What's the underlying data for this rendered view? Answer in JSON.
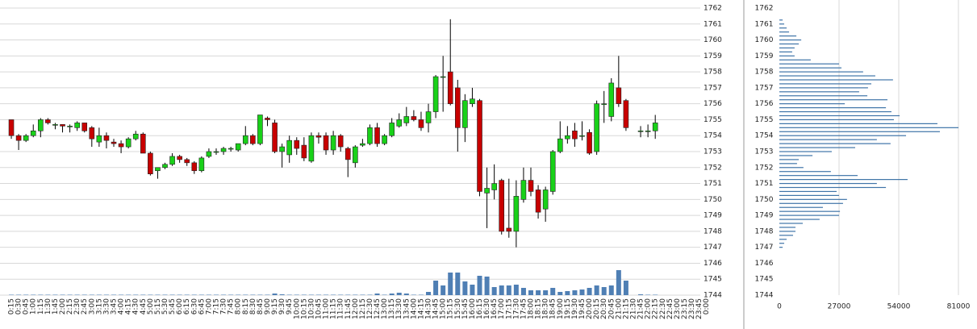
{
  "chart_data": [
    {
      "type": "candlestick",
      "x": [
        "0:15",
        "0:30",
        "0:45",
        "1:00",
        "1:15",
        "1:30",
        "1:45",
        "2:00",
        "2:15",
        "2:30",
        "2:45",
        "3:00",
        "3:15",
        "3:30",
        "3:45",
        "4:00",
        "4:15",
        "4:30",
        "4:45",
        "5:00",
        "5:15",
        "5:30",
        "5:45",
        "6:00",
        "6:15",
        "6:30",
        "6:45",
        "7:00",
        "7:15",
        "7:30",
        "7:45",
        "8:00",
        "8:15",
        "8:30",
        "8:45",
        "9:00",
        "9:15",
        "9:30",
        "9:45",
        "10:00",
        "10:15",
        "10:30",
        "10:45",
        "11:00",
        "11:15",
        "11:30",
        "11:45",
        "12:00",
        "12:15",
        "12:30",
        "12:45",
        "13:00",
        "13:15",
        "13:30",
        "13:45",
        "14:00",
        "14:15",
        "14:30",
        "14:45",
        "15:00",
        "15:15",
        "15:30",
        "15:45",
        "16:00",
        "16:15",
        "16:30",
        "16:45",
        "17:00",
        "17:15",
        "17:30",
        "17:45",
        "18:00",
        "18:15",
        "18:30",
        "18:45",
        "19:00",
        "19:15",
        "19:30",
        "19:45",
        "20:00",
        "20:15",
        "20:30",
        "20:45",
        "21:00",
        "21:15",
        "21:30",
        "21:45",
        "22:00",
        "22:15",
        "22:30",
        "22:45",
        "23:00",
        "23:15",
        "23:30",
        "23:45",
        "0:00"
      ],
      "open": [
        1755.0,
        1754.0,
        1753.7,
        1754.0,
        1754.3,
        1755.0,
        1754.7,
        1754.7,
        1754.6,
        1754.5,
        1754.8,
        1754.5,
        1753.6,
        1754.0,
        1753.6,
        1753.5,
        1753.3,
        1753.8,
        1754.1,
        1752.9,
        1751.8,
        1752.0,
        1752.2,
        1752.7,
        1752.5,
        1752.3,
        1751.8,
        1752.7,
        1753.0,
        1753.0,
        1753.2,
        1753.1,
        1753.5,
        1754.0,
        1753.5,
        1755.1,
        1754.8,
        1753.0,
        1752.8,
        1753.7,
        1753.4,
        1752.4,
        1754.0,
        1754.0,
        1753.1,
        1754.0,
        1753.2,
        1752.3,
        1753.4,
        1753.5,
        1754.5,
        1753.5,
        1754.0,
        1754.6,
        1754.8,
        1755.2,
        1755.0,
        1754.8,
        1755.5,
        1757.7,
        1758.0,
        1757.0,
        1754.5,
        1756.0,
        1756.2,
        1750.4,
        1750.6,
        1751.2,
        1748.2,
        1748.0,
        1750.0,
        1751.2,
        1750.6,
        1749.4,
        1750.5,
        1753.0,
        1753.8,
        1754.3,
        1754.0,
        1754.2,
        1753.0,
        1756.0,
        1755.2,
        1757.0,
        1756.2,
        null,
        1754.3,
        1754.3,
        1754.3,
        null,
        null,
        null,
        null,
        null,
        null,
        null
      ],
      "high": [
        1755.0,
        1754.1,
        1754.1,
        1754.7,
        1755.1,
        1755.1,
        1754.8,
        1754.7,
        1754.7,
        1754.9,
        1754.8,
        1754.6,
        1754.5,
        1754.2,
        1753.8,
        1753.7,
        1753.9,
        1754.3,
        1754.2,
        1753.0,
        1752.0,
        1752.3,
        1752.9,
        1752.8,
        1752.6,
        1752.4,
        1752.7,
        1753.2,
        1753.2,
        1753.3,
        1753.3,
        1753.5,
        1754.6,
        1754.1,
        1755.3,
        1755.2,
        1755.0,
        1753.5,
        1754.0,
        1753.9,
        1753.9,
        1754.2,
        1754.2,
        1754.2,
        1754.3,
        1754.1,
        1753.3,
        1753.4,
        1753.8,
        1754.7,
        1754.8,
        1754.1,
        1755.1,
        1755.4,
        1755.8,
        1755.6,
        1755.5,
        1756.0,
        1757.8,
        1759.0,
        1761.3,
        1757.5,
        1756.6,
        1757.0,
        1756.3,
        1752.0,
        1752.2,
        1751.3,
        1751.3,
        1751.2,
        1752.0,
        1752.0,
        1750.9,
        1750.8,
        1753.1,
        1754.9,
        1754.6,
        1754.8,
        1754.9,
        1754.4,
        1756.2,
        1756.8,
        1757.6,
        1759.0,
        1756.3,
        null,
        1754.6,
        1754.7,
        1755.3,
        null,
        null,
        null,
        null,
        null,
        null,
        null
      ],
      "low": [
        1753.8,
        1753.1,
        1753.6,
        1753.9,
        1753.9,
        1754.7,
        1754.4,
        1754.2,
        1754.2,
        1754.3,
        1754.2,
        1753.3,
        1753.3,
        1753.2,
        1753.3,
        1752.9,
        1753.2,
        1753.7,
        1752.9,
        1751.5,
        1751.3,
        1751.9,
        1752.1,
        1752.3,
        1752.1,
        1751.6,
        1751.7,
        1752.6,
        1752.8,
        1752.8,
        1753.0,
        1753.0,
        1753.4,
        1753.4,
        1753.4,
        1754.6,
        1752.9,
        1752.0,
        1752.3,
        1752.8,
        1752.4,
        1752.3,
        1753.5,
        1752.8,
        1752.8,
        1753.0,
        1751.4,
        1752.0,
        1753.3,
        1753.4,
        1753.3,
        1753.4,
        1753.9,
        1754.5,
        1754.6,
        1754.9,
        1754.3,
        1754.2,
        1755.1,
        1755.5,
        1755.9,
        1753.0,
        1753.6,
        1755.8,
        1750.2,
        1748.2,
        1750.0,
        1747.8,
        1747.6,
        1747.0,
        1749.8,
        1750.2,
        1748.8,
        1748.6,
        1750.3,
        1752.9,
        1753.5,
        1753.3,
        1753.7,
        1752.8,
        1752.8,
        1754.8,
        1754.9,
        1755.8,
        1754.3,
        null,
        1753.9,
        1753.9,
        1753.8,
        null,
        null,
        null,
        null,
        null,
        null,
        null
      ],
      "close": [
        1754.0,
        1753.7,
        1754.0,
        1754.3,
        1755.0,
        1754.8,
        1754.7,
        1754.6,
        1754.6,
        1754.8,
        1754.3,
        1753.8,
        1754.0,
        1753.7,
        1753.5,
        1753.3,
        1753.8,
        1754.1,
        1752.9,
        1751.6,
        1752.0,
        1752.2,
        1752.7,
        1752.5,
        1752.3,
        1751.8,
        1752.6,
        1753.0,
        1753.0,
        1753.2,
        1753.2,
        1753.5,
        1754.0,
        1753.5,
        1755.3,
        1755.0,
        1753.0,
        1753.3,
        1753.7,
        1753.2,
        1752.6,
        1754.0,
        1753.9,
        1753.1,
        1754.0,
        1753.3,
        1752.5,
        1753.3,
        1753.5,
        1754.5,
        1753.5,
        1754.0,
        1754.8,
        1755.0,
        1755.2,
        1755.0,
        1754.5,
        1755.5,
        1757.7,
        1757.7,
        1756.0,
        1754.5,
        1756.2,
        1756.3,
        1750.5,
        1750.7,
        1751.0,
        1748.0,
        1748.0,
        1750.2,
        1751.2,
        1750.5,
        1749.2,
        1750.6,
        1753.0,
        1753.8,
        1754.0,
        1753.8,
        1754.0,
        1752.9,
        1756.0,
        1756.0,
        1757.3,
        1756.0,
        1754.5,
        null,
        1754.3,
        1754.3,
        1754.8,
        null,
        null,
        null,
        null,
        null,
        null,
        null
      ],
      "volume": [
        200,
        200,
        200,
        200,
        200,
        200,
        200,
        200,
        200,
        200,
        200,
        200,
        200,
        200,
        200,
        200,
        200,
        200,
        200,
        200,
        200,
        200,
        200,
        200,
        200,
        200,
        200,
        200,
        200,
        200,
        200,
        200,
        200,
        200,
        200,
        200,
        800,
        400,
        200,
        200,
        200,
        200,
        200,
        200,
        200,
        200,
        200,
        200,
        200,
        200,
        800,
        200,
        800,
        1200,
        800,
        200,
        200,
        1600,
        7200,
        4800,
        11200,
        11200,
        6800,
        5200,
        9600,
        9200,
        4000,
        4800,
        4800,
        5200,
        3600,
        2400,
        2400,
        2400,
        3600,
        1600,
        2000,
        2400,
        2800,
        3600,
        4800,
        4000,
        4800,
        12400,
        7200,
        null,
        400,
        200,
        200,
        null,
        null,
        null,
        null,
        null,
        null,
        null
      ],
      "volume_lim": [
        0,
        40000
      ],
      "ylim": [
        1744,
        1762
      ],
      "yticks": [
        1744,
        1745,
        1746,
        1747,
        1748,
        1749,
        1750,
        1751,
        1752,
        1753,
        1754,
        1755,
        1756,
        1757,
        1758,
        1759,
        1760,
        1761,
        1762
      ],
      "up_color": "#19d119",
      "down_color": "#c80000",
      "volume_color": "#4f7fb4",
      "grid": true
    },
    {
      "type": "horizontal_bar",
      "y": [
        1747.0,
        1747.25,
        1747.5,
        1747.75,
        1748.0,
        1748.25,
        1748.5,
        1748.75,
        1749.0,
        1749.25,
        1749.5,
        1749.75,
        1750.0,
        1750.25,
        1750.5,
        1750.75,
        1751.0,
        1751.25,
        1751.5,
        1751.75,
        1752.0,
        1752.25,
        1752.5,
        1752.75,
        1753.0,
        1753.25,
        1753.5,
        1753.75,
        1754.0,
        1754.25,
        1754.5,
        1754.75,
        1755.0,
        1755.25,
        1755.5,
        1755.75,
        1756.0,
        1756.25,
        1756.5,
        1756.75,
        1757.0,
        1757.25,
        1757.5,
        1757.75,
        1758.0,
        1758.25,
        1758.5,
        1758.75,
        1759.0,
        1759.25,
        1759.5,
        1759.75,
        1760.0,
        1760.25,
        1760.5,
        1760.75,
        1761.0,
        1761.25
      ],
      "values": [
        1500,
        2200,
        3300,
        6200,
        7300,
        7300,
        10600,
        18200,
        27000,
        27400,
        19700,
        28800,
        30600,
        27000,
        25900,
        48200,
        44100,
        58000,
        35400,
        23300,
        10900,
        8000,
        8800,
        15000,
        23700,
        34300,
        50300,
        44100,
        57300,
        72600,
        81000,
        71500,
        51800,
        54400,
        50700,
        48200,
        29600,
        48900,
        39800,
        36100,
        40100,
        41600,
        51400,
        43400,
        37900,
        28100,
        27000,
        14200,
        6900,
        5800,
        6900,
        8800,
        9900,
        7700,
        4400,
        3300,
        2200,
        1500
      ],
      "xlim": [
        0,
        81000
      ],
      "xticks": [
        0,
        27000,
        54000,
        81000
      ],
      "ylim": [
        1744,
        1762
      ],
      "yticks": [
        1744,
        1745,
        1746,
        1747,
        1748,
        1749,
        1750,
        1751,
        1752,
        1753,
        1754,
        1755,
        1756,
        1757,
        1758,
        1759,
        1760,
        1761,
        1762
      ],
      "color": "#3f74a8",
      "grid": true
    }
  ]
}
